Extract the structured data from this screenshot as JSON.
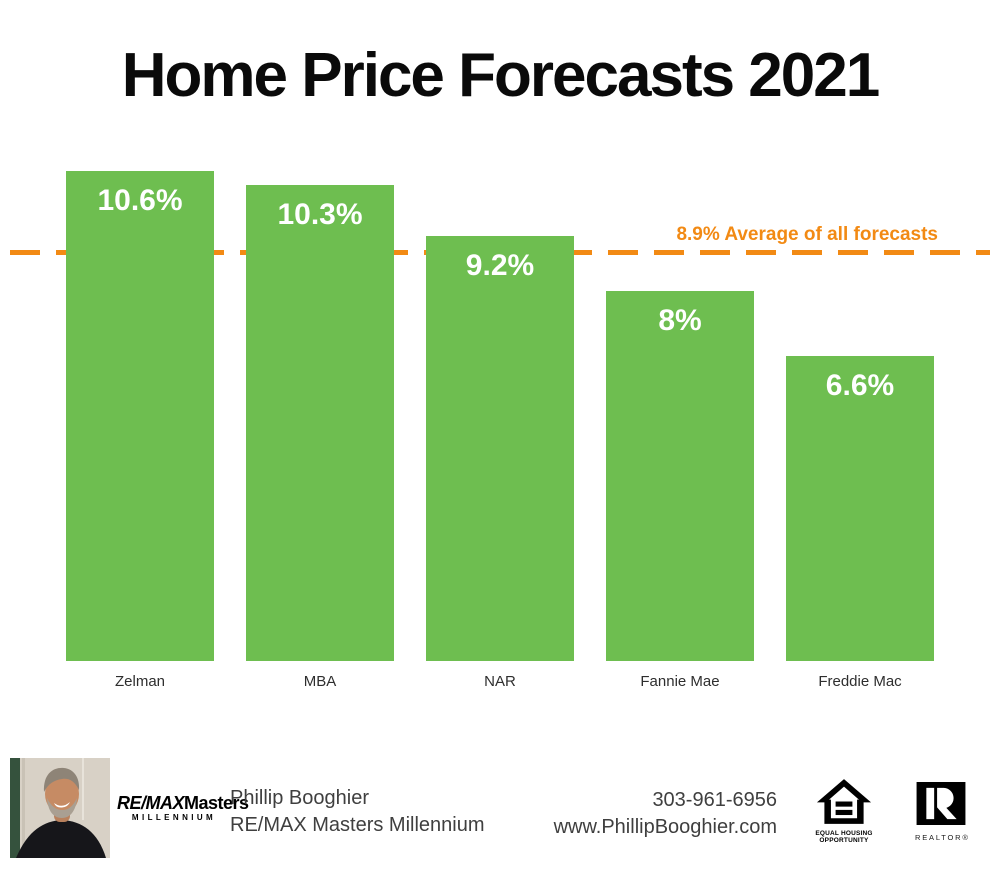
{
  "chart_data": {
    "type": "bar",
    "title": "Home Price Forecasts 2021",
    "categories": [
      "Zelman",
      "MBA",
      "NAR",
      "Fannie Mae",
      "Freddie Mac"
    ],
    "values": [
      10.6,
      10.3,
      9.2,
      8,
      6.6
    ],
    "value_labels": [
      "10.6%",
      "10.3%",
      "9.2%",
      "8%",
      "6.6%"
    ],
    "bar_color": "#6EBE50",
    "value_label_color": "#FFFFFF",
    "category_label_color": "#2E2E2E",
    "average_line": {
      "value": 8.9,
      "label": "8.9% Average of all forecasts",
      "color": "#F28A14",
      "style": "dashed"
    },
    "ylim": [
      0,
      11.1
    ],
    "grid": false,
    "legend": "none"
  },
  "footer": {
    "agent_name": "Phillip Booghier",
    "brokerage_name": "RE/MAX Masters Millennium",
    "phone": "303-961-6956",
    "website": "www.PhillipBooghier.com",
    "brokerage_logo": {
      "remax": "RE/MAX",
      "masters": "Masters",
      "millennium": "MILLENNIUM",
      "red": "#DC1C2E",
      "blue": "#003DA5"
    },
    "equal_housing_logo": {
      "line1": "EQUAL HOUSING",
      "line2": "OPPORTUNITY"
    },
    "realtor_logo": {
      "label": "REALTOR®"
    }
  }
}
